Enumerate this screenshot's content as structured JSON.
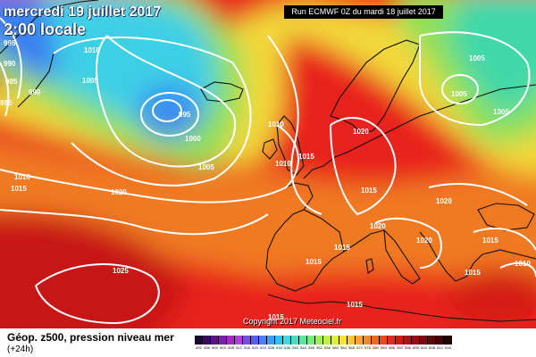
{
  "header": {
    "date_text": "mercredi 19 juillet 2017",
    "time_text": "2:00 locale",
    "run_text": "Run ECMWF 0Z du mardi 18 juillet 2017"
  },
  "copyright": "Copyright 2017 Meteociel.fr",
  "legend": {
    "title": "Géop. z500, pression niveau mer",
    "subtitle": "(+24h)",
    "scale_values": [
      "492",
      "496",
      "500",
      "504",
      "508",
      "512",
      "516",
      "520",
      "524",
      "528",
      "532",
      "536",
      "540",
      "544",
      "548",
      "552",
      "556",
      "560",
      "564",
      "568",
      "572",
      "576",
      "580",
      "584",
      "588",
      "592",
      "596",
      "600",
      "604",
      "608",
      "612",
      "616"
    ],
    "scale_colors": [
      "#1a0a2e",
      "#3b0a5c",
      "#5a1487",
      "#7a1fa8",
      "#9b2ec4",
      "#b43fd6",
      "#7a4de0",
      "#5a5ee8",
      "#4a7ff0",
      "#3d9ff2",
      "#36c0f0",
      "#3cd8e6",
      "#46e0c4",
      "#5ae6a0",
      "#78ec7a",
      "#9cf05a",
      "#c0f04a",
      "#e0ee40",
      "#f6e23a",
      "#fac832",
      "#f8a82c",
      "#f48a28",
      "#ee6a22",
      "#e64a1e",
      "#dc2e1a",
      "#cc1a16",
      "#b21214",
      "#960e12",
      "#7a0a10",
      "#5e060c",
      "#420408",
      "#260204"
    ]
  },
  "map": {
    "pressure_labels": [
      "995",
      "990",
      "985",
      "985",
      "990",
      "1010",
      "1005",
      "995",
      "1000",
      "1005",
      "1010",
      "1015",
      "1010",
      "1010",
      "1020",
      "1015",
      "1020",
      "1005",
      "1005",
      "1005",
      "1015",
      "1020",
      "1020",
      "1015",
      "1020",
      "1015",
      "1015",
      "1025",
      "1015",
      "1010",
      "1015",
      "1015"
    ],
    "contour_color": "#ffffff",
    "coast_color": "#111111"
  }
}
